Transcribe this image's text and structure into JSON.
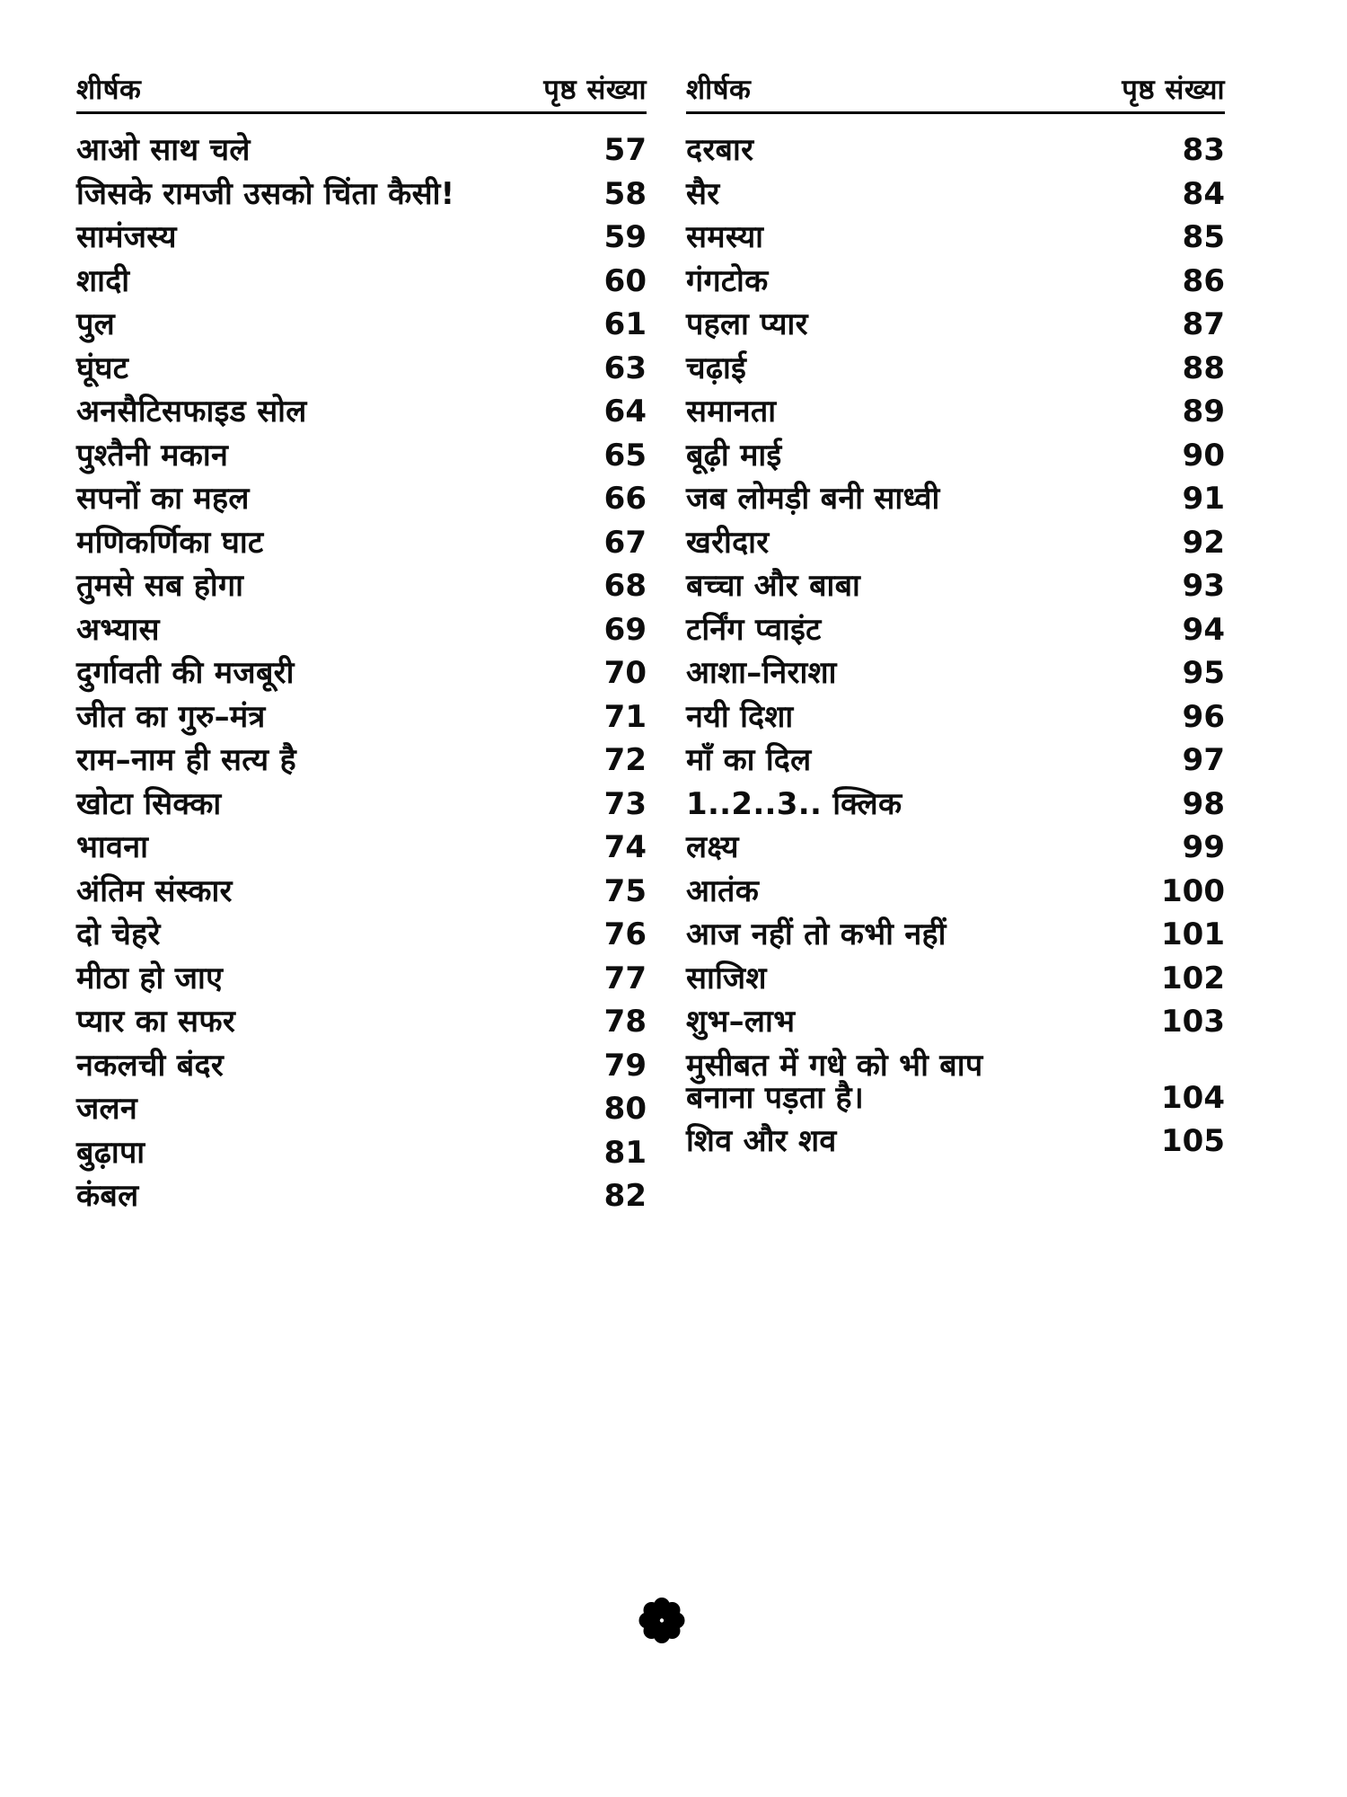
{
  "page": {
    "background": "#ffffff",
    "text_color": "#0d0d0d",
    "language": "hi"
  },
  "decoration": {
    "florette_icon": "black-florette"
  },
  "columns": [
    {
      "header": {
        "title_label": "शीर्षक",
        "page_label": "पृष्ठ संख्या"
      },
      "entries": [
        {
          "title": "आओ साथ चले",
          "page": "57"
        },
        {
          "title": "जिसके रामजी उसको चिंता कैसी!",
          "page": "58"
        },
        {
          "title": "सामंजस्य",
          "page": "59"
        },
        {
          "title": "शादी",
          "page": "60"
        },
        {
          "title": "पुल",
          "page": "61"
        },
        {
          "title": "घूंघट",
          "page": "63"
        },
        {
          "title": "अनसैटिसफाइड सोल",
          "page": "64"
        },
        {
          "title": "पुश्तैनी मकान",
          "page": "65"
        },
        {
          "title": "सपनों का महल",
          "page": "66"
        },
        {
          "title": "मणिकर्णिका घाट",
          "page": "67"
        },
        {
          "title": "तुमसे सब होगा",
          "page": "68"
        },
        {
          "title": "अभ्यास",
          "page": "69"
        },
        {
          "title": "दुर्गावती की मजबूरी",
          "page": "70"
        },
        {
          "title": "जीत का गुरु–मंत्र",
          "page": "71"
        },
        {
          "title": "राम–नाम ही सत्य है",
          "page": "72"
        },
        {
          "title": "खोटा सिक्का",
          "page": "73"
        },
        {
          "title": "भावना",
          "page": "74"
        },
        {
          "title": "अंतिम संस्कार",
          "page": "75"
        },
        {
          "title": "दो चेहरे",
          "page": "76"
        },
        {
          "title": "मीठा हो जाए",
          "page": "77"
        },
        {
          "title": "प्यार का सफर",
          "page": "78"
        },
        {
          "title": "नकलची बंदर",
          "page": "79"
        },
        {
          "title": "जलन",
          "page": "80"
        },
        {
          "title": "बुढ़ापा",
          "page": "81"
        },
        {
          "title": "कंबल",
          "page": "82"
        }
      ]
    },
    {
      "header": {
        "title_label": "शीर्षक",
        "page_label": "पृष्ठ संख्या"
      },
      "entries": [
        {
          "title": "दरबार",
          "page": "83"
        },
        {
          "title": "सैर",
          "page": "84"
        },
        {
          "title": "समस्या",
          "page": "85"
        },
        {
          "title": "गंगटोक",
          "page": "86"
        },
        {
          "title": "पहला प्यार",
          "page": "87"
        },
        {
          "title": "चढ़ाई",
          "page": "88"
        },
        {
          "title": "समानता",
          "page": "89"
        },
        {
          "title": "बूढ़ी माई",
          "page": "90"
        },
        {
          "title": "जब लोमड़ी बनी साध्वी",
          "page": "91"
        },
        {
          "title": "खरीदार",
          "page": "92"
        },
        {
          "title": "बच्चा और बाबा",
          "page": "93"
        },
        {
          "title": "टर्निंग प्वाइंट",
          "page": "94"
        },
        {
          "title": "आशा–निराशा",
          "page": "95"
        },
        {
          "title": "नयी दिशा",
          "page": "96"
        },
        {
          "title": "माँ का दिल",
          "page": "97"
        },
        {
          "title": "1..2..3.. क्लिक",
          "page": "98"
        },
        {
          "title": "लक्ष्य",
          "page": "99"
        },
        {
          "title": "आतंक",
          "page": "100"
        },
        {
          "title": "आज नहीं तो कभी नहीं",
          "page": "101"
        },
        {
          "title": "साजिश",
          "page": "102"
        },
        {
          "title": "शुभ–लाभ",
          "page": "103"
        },
        {
          "title": "मुसीबत में गधे को भी बाप\nबनाना पड़ता है।",
          "page": "104"
        },
        {
          "title": "शिव और शव",
          "page": "105"
        }
      ]
    }
  ]
}
